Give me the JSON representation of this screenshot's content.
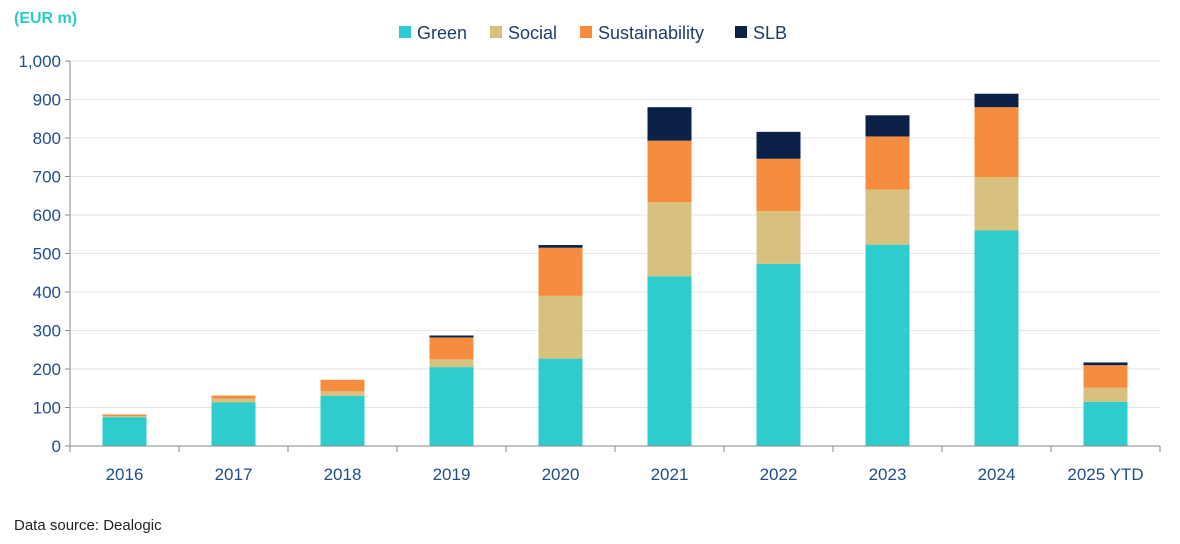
{
  "unit_label": "(EUR m)",
  "source_note": "Data source: Dealogic",
  "chart_data": {
    "type": "bar",
    "stacked": true,
    "categories": [
      "2016",
      "2017",
      "2018",
      "2019",
      "2020",
      "2021",
      "2022",
      "2023",
      "2024",
      "2025  YTD"
    ],
    "series": [
      {
        "name": "Green",
        "color": "#2ecccc",
        "values": [
          75,
          113,
          130,
          205,
          227,
          441,
          473,
          523,
          560,
          115
        ]
      },
      {
        "name": "Social",
        "color": "#d8c07e",
        "values": [
          3,
          10,
          12,
          20,
          163,
          192,
          137,
          143,
          138,
          37
        ]
      },
      {
        "name": "Sustainability",
        "color": "#f68d3e",
        "values": [
          4,
          8,
          30,
          57,
          125,
          160,
          136,
          138,
          182,
          58
        ]
      },
      {
        "name": "SLB",
        "color": "#0c2148",
        "values": [
          0,
          0,
          0,
          5,
          7,
          87,
          70,
          55,
          35,
          7
        ]
      }
    ],
    "ylim": [
      0,
      1000
    ],
    "yticks": [
      "0",
      "100",
      "200",
      "300",
      "400",
      "500",
      "600",
      "700",
      "800",
      "900",
      "1,000"
    ],
    "ytick_values": [
      0,
      100,
      200,
      300,
      400,
      500,
      600,
      700,
      800,
      900,
      1000
    ],
    "grid": true,
    "legend_position": "top-center"
  }
}
